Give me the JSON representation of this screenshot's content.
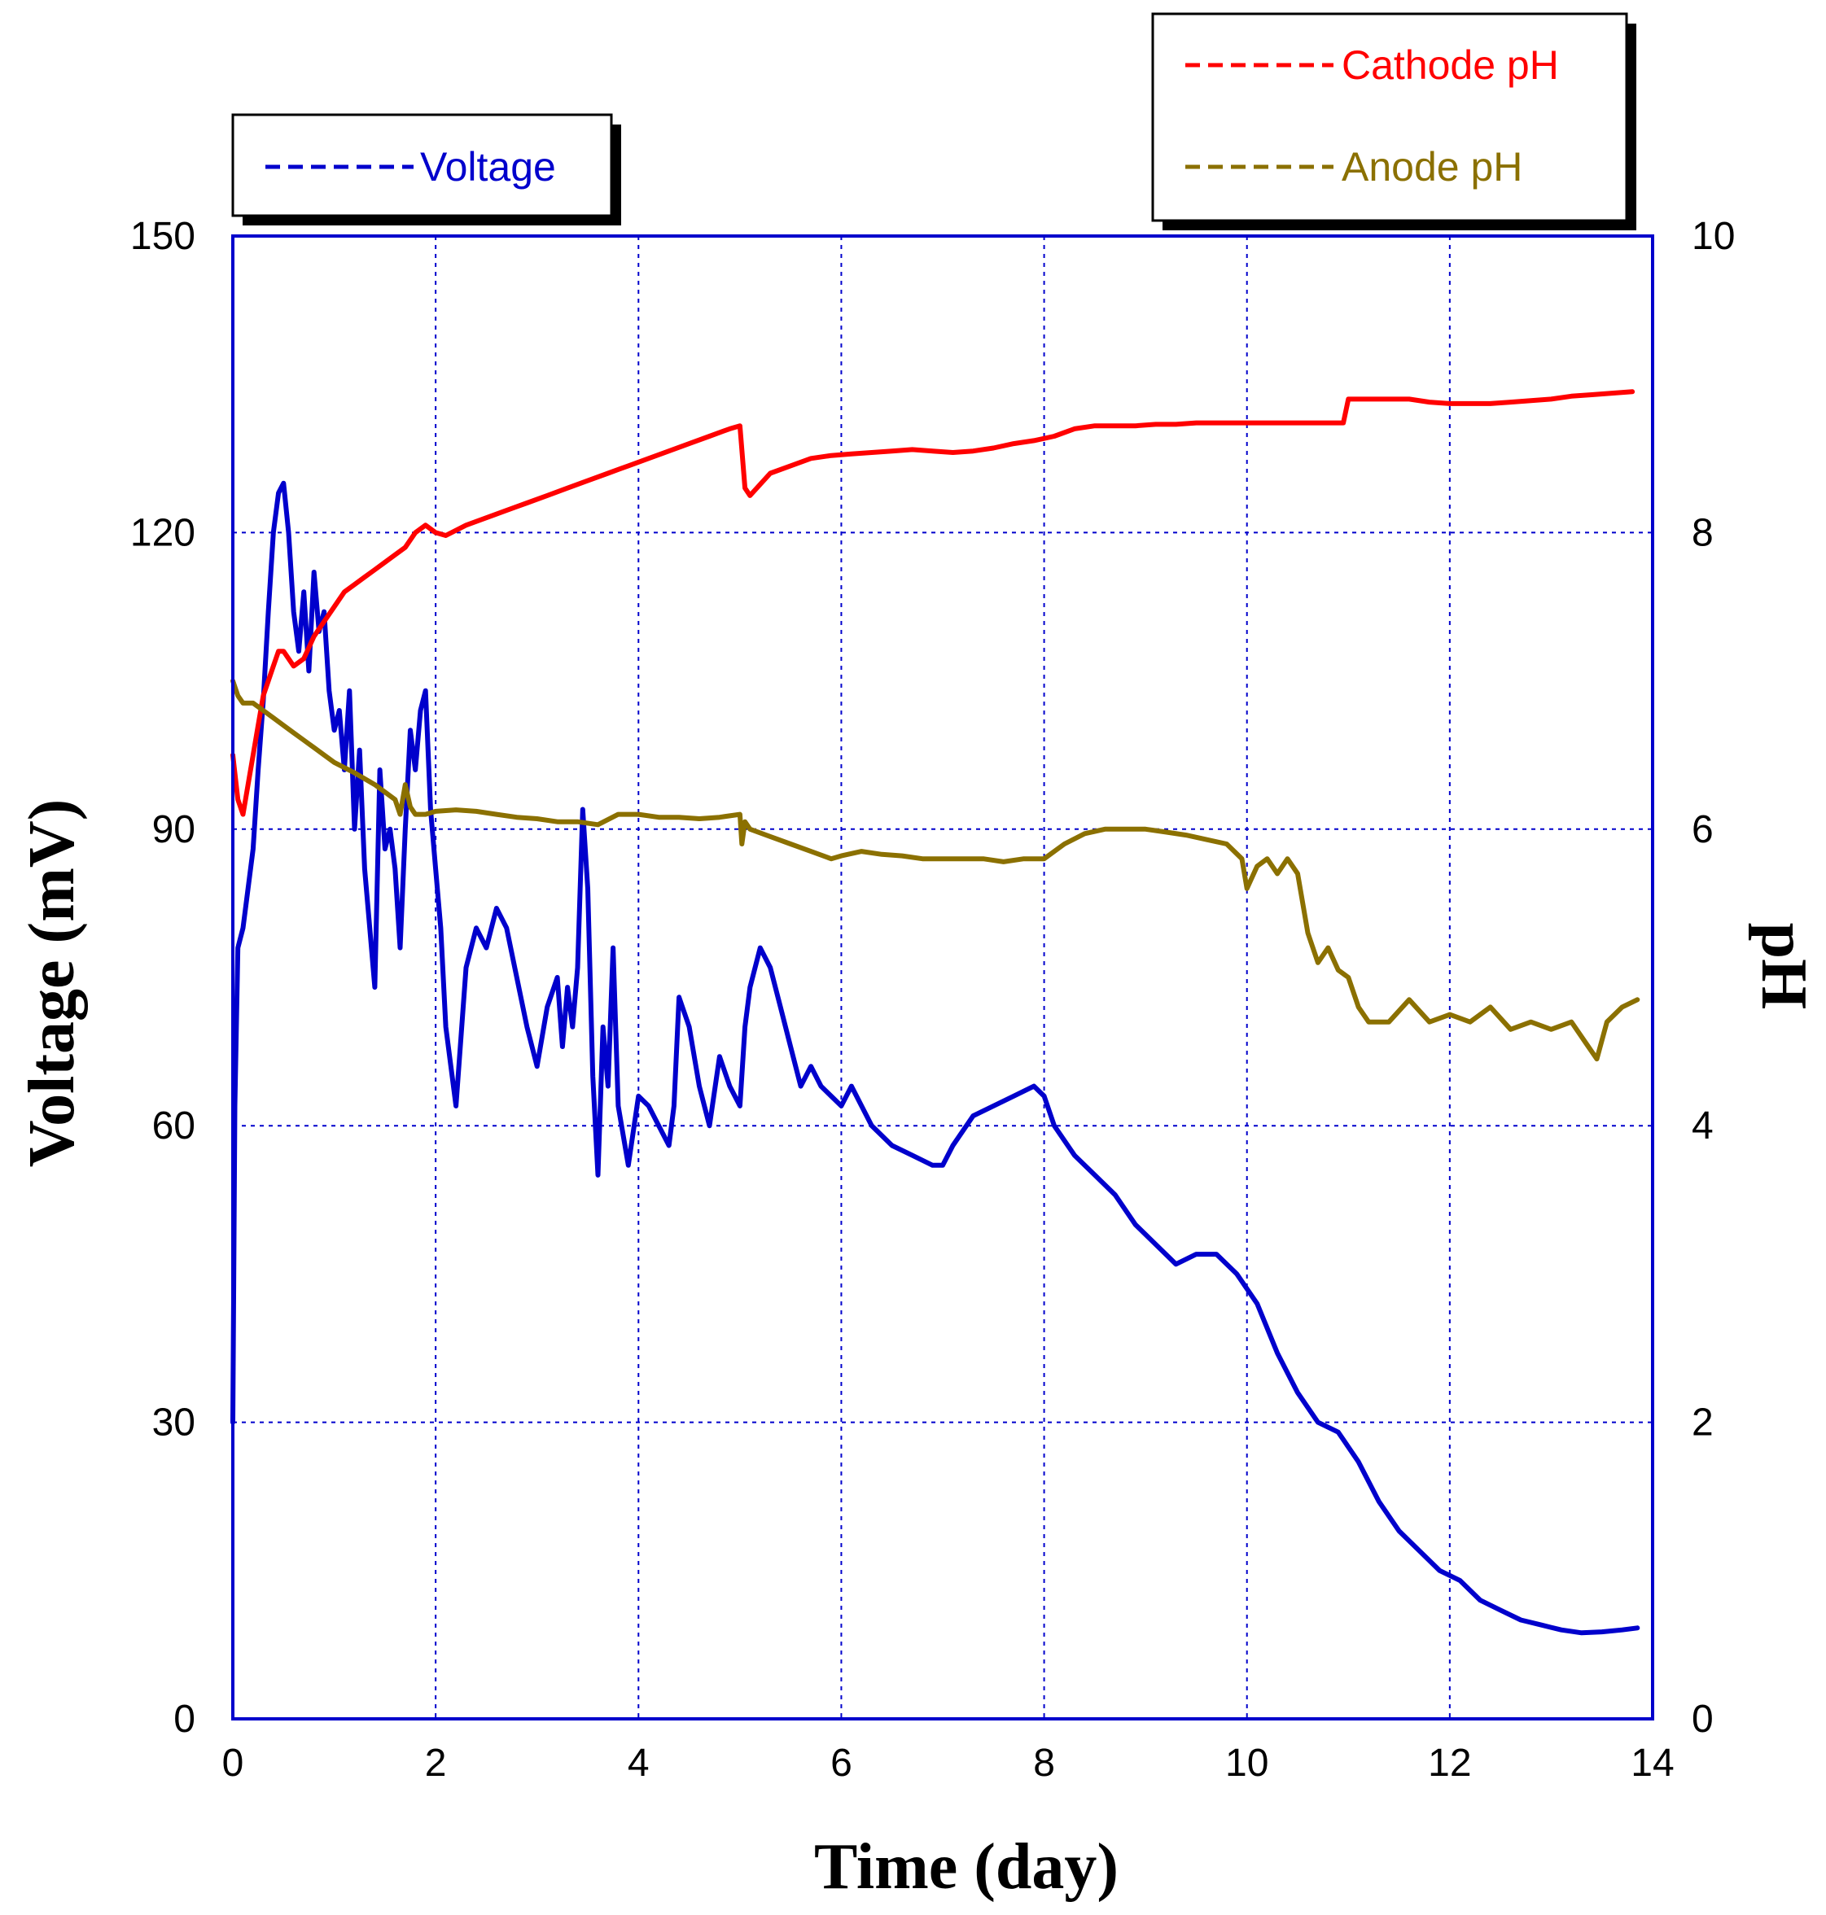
{
  "chart_data": {
    "type": "line",
    "title": "",
    "xlabel": "Time (day)",
    "ylabel_left": "Voltage (mV)",
    "ylabel_right": "pH",
    "xlim": [
      0,
      14
    ],
    "ylim_left": [
      0,
      150
    ],
    "ylim_right": [
      0,
      10
    ],
    "x_ticks": [
      "0",
      "2",
      "4",
      "6",
      "8",
      "10",
      "12",
      "14"
    ],
    "y_left_ticks": [
      "0",
      "30",
      "60",
      "90",
      "120",
      "150"
    ],
    "y_right_ticks": [
      "0",
      "2",
      "4",
      "6",
      "8",
      "10"
    ],
    "grid": true,
    "colors": {
      "voltage": "#0000cc",
      "cathode": "#ff0000",
      "anode": "#8b7000",
      "grid": "#0000cc",
      "frame": "#0000cc"
    },
    "legend_left": {
      "label": "Voltage",
      "placement": "top-left"
    },
    "legend_right": {
      "labels": [
        "Cathode pH",
        "Anode pH"
      ],
      "placement": "top-right"
    },
    "series": [
      {
        "name": "Voltage",
        "axis": "left",
        "unit": "mV",
        "x": [
          0,
          0.02,
          0.05,
          0.1,
          0.15,
          0.2,
          0.25,
          0.3,
          0.35,
          0.4,
          0.45,
          0.5,
          0.55,
          0.6,
          0.65,
          0.7,
          0.75,
          0.8,
          0.85,
          0.9,
          0.95,
          1.0,
          1.05,
          1.1,
          1.15,
          1.2,
          1.25,
          1.3,
          1.35,
          1.4,
          1.45,
          1.5,
          1.55,
          1.6,
          1.65,
          1.7,
          1.75,
          1.8,
          1.85,
          1.9,
          1.95,
          2.0,
          2.05,
          2.1,
          2.2,
          2.3,
          2.4,
          2.5,
          2.6,
          2.7,
          2.8,
          2.9,
          3.0,
          3.1,
          3.2,
          3.25,
          3.3,
          3.35,
          3.4,
          3.45,
          3.5,
          3.55,
          3.6,
          3.65,
          3.7,
          3.75,
          3.8,
          3.9,
          4.0,
          4.1,
          4.2,
          4.3,
          4.35,
          4.4,
          4.5,
          4.6,
          4.7,
          4.8,
          4.9,
          5.0,
          5.05,
          5.1,
          5.2,
          5.3,
          5.4,
          5.5,
          5.6,
          5.7,
          5.8,
          5.9,
          6.0,
          6.1,
          6.2,
          6.3,
          6.5,
          6.7,
          6.9,
          7.0,
          7.1,
          7.3,
          7.5,
          7.7,
          7.9,
          8.0,
          8.1,
          8.3,
          8.5,
          8.7,
          8.9,
          9.1,
          9.3,
          9.5,
          9.7,
          9.9,
          10.1,
          10.3,
          10.5,
          10.7,
          10.9,
          11.1,
          11.3,
          11.5,
          11.7,
          11.9,
          12.1,
          12.3,
          12.5,
          12.7,
          12.9,
          13.1,
          13.3,
          13.5,
          13.7,
          13.85
        ],
        "values": [
          30,
          62,
          78,
          80,
          84,
          88,
          96,
          103,
          112,
          120,
          124,
          125,
          120,
          112,
          108,
          114,
          106,
          116,
          110,
          112,
          104,
          100,
          102,
          96,
          104,
          90,
          98,
          86,
          80,
          74,
          96,
          88,
          90,
          86,
          78,
          90,
          100,
          96,
          102,
          104,
          92,
          86,
          80,
          70,
          62,
          76,
          80,
          78,
          82,
          80,
          75,
          70,
          66,
          72,
          75,
          68,
          74,
          70,
          76,
          92,
          84,
          65,
          55,
          70,
          64,
          78,
          62,
          56,
          63,
          62,
          60,
          58,
          62,
          73,
          70,
          64,
          60,
          67,
          64,
          62,
          70,
          74,
          78,
          76,
          72,
          68,
          64,
          66,
          64,
          63,
          62,
          64,
          62,
          60,
          58,
          57,
          56,
          56,
          58,
          61,
          62,
          63,
          64,
          63,
          60,
          57,
          55,
          53,
          50,
          48,
          46,
          47,
          47,
          45,
          42,
          37,
          33,
          30,
          29,
          26,
          22,
          19,
          17,
          15,
          14,
          12,
          11,
          10,
          9.5,
          9,
          8.7,
          8.8,
          9.0,
          9.2
        ]
      },
      {
        "name": "Cathode pH",
        "axis": "right",
        "unit": "pH",
        "x": [
          0,
          0.05,
          0.1,
          0.15,
          0.2,
          0.25,
          0.3,
          0.35,
          0.4,
          0.45,
          0.5,
          0.55,
          0.6,
          0.7,
          0.8,
          0.9,
          1.0,
          1.1,
          1.2,
          1.3,
          1.4,
          1.5,
          1.6,
          1.7,
          1.8,
          1.9,
          2.0,
          2.1,
          2.3,
          2.5,
          2.7,
          2.9,
          3.1,
          3.3,
          3.5,
          3.7,
          3.9,
          4.1,
          4.3,
          4.5,
          4.7,
          4.9,
          5.0,
          5.05,
          5.1,
          5.3,
          5.5,
          5.7,
          5.9,
          6.1,
          6.3,
          6.5,
          6.7,
          6.9,
          7.1,
          7.3,
          7.5,
          7.7,
          7.9,
          8.1,
          8.3,
          8.5,
          8.7,
          8.9,
          9.1,
          9.3,
          9.5,
          9.7,
          9.9,
          10.1,
          10.3,
          10.5,
          10.7,
          10.9,
          10.95,
          11.0,
          11.2,
          11.4,
          11.6,
          11.8,
          12.0,
          12.2,
          12.4,
          12.6,
          12.8,
          13.0,
          13.2,
          13.4,
          13.6,
          13.8
        ],
        "values": [
          6.5,
          6.2,
          6.1,
          6.3,
          6.5,
          6.7,
          6.9,
          7.0,
          7.1,
          7.2,
          7.2,
          7.15,
          7.1,
          7.15,
          7.3,
          7.4,
          7.5,
          7.6,
          7.65,
          7.7,
          7.75,
          7.8,
          7.85,
          7.9,
          8.0,
          8.05,
          8.0,
          7.98,
          8.05,
          8.1,
          8.15,
          8.2,
          8.25,
          8.3,
          8.35,
          8.4,
          8.45,
          8.5,
          8.55,
          8.6,
          8.65,
          8.7,
          8.72,
          8.3,
          8.25,
          8.4,
          8.45,
          8.5,
          8.52,
          8.53,
          8.54,
          8.55,
          8.56,
          8.55,
          8.54,
          8.55,
          8.57,
          8.6,
          8.62,
          8.65,
          8.7,
          8.72,
          8.72,
          8.72,
          8.73,
          8.73,
          8.74,
          8.74,
          8.74,
          8.74,
          8.74,
          8.74,
          8.74,
          8.74,
          8.74,
          8.9,
          8.9,
          8.9,
          8.9,
          8.88,
          8.87,
          8.87,
          8.87,
          8.88,
          8.89,
          8.9,
          8.92,
          8.93,
          8.94,
          8.95
        ]
      },
      {
        "name": "Anode pH",
        "axis": "right",
        "unit": "pH",
        "x": [
          0,
          0.05,
          0.1,
          0.2,
          0.3,
          0.4,
          0.5,
          0.6,
          0.7,
          0.8,
          0.9,
          1.0,
          1.2,
          1.4,
          1.6,
          1.65,
          1.7,
          1.75,
          1.8,
          1.9,
          2.0,
          2.2,
          2.4,
          2.6,
          2.8,
          3.0,
          3.2,
          3.4,
          3.6,
          3.8,
          4.0,
          4.2,
          4.4,
          4.6,
          4.8,
          5.0,
          5.02,
          5.05,
          5.1,
          5.3,
          5.5,
          5.7,
          5.9,
          6.0,
          6.2,
          6.4,
          6.6,
          6.8,
          7.0,
          7.2,
          7.4,
          7.6,
          7.8,
          8.0,
          8.2,
          8.4,
          8.6,
          8.8,
          9.0,
          9.2,
          9.4,
          9.6,
          9.8,
          9.95,
          10.0,
          10.1,
          10.2,
          10.3,
          10.4,
          10.5,
          10.6,
          10.7,
          10.8,
          10.9,
          11.0,
          11.1,
          11.2,
          11.4,
          11.6,
          11.8,
          12.0,
          12.2,
          12.4,
          12.6,
          12.8,
          13.0,
          13.2,
          13.35,
          13.45,
          13.55,
          13.7,
          13.85
        ],
        "values": [
          7.0,
          6.9,
          6.85,
          6.85,
          6.8,
          6.75,
          6.7,
          6.65,
          6.6,
          6.55,
          6.5,
          6.45,
          6.38,
          6.3,
          6.2,
          6.1,
          6.3,
          6.15,
          6.1,
          6.1,
          6.12,
          6.13,
          6.12,
          6.1,
          6.08,
          6.07,
          6.05,
          6.05,
          6.03,
          6.1,
          6.1,
          6.08,
          6.08,
          6.07,
          6.08,
          6.1,
          5.9,
          6.05,
          6.0,
          5.95,
          5.9,
          5.85,
          5.8,
          5.82,
          5.85,
          5.83,
          5.82,
          5.8,
          5.8,
          5.8,
          5.8,
          5.78,
          5.8,
          5.8,
          5.9,
          5.97,
          6.0,
          6.0,
          6.0,
          5.98,
          5.96,
          5.93,
          5.9,
          5.8,
          5.6,
          5.75,
          5.8,
          5.7,
          5.8,
          5.7,
          5.3,
          5.1,
          5.2,
          5.05,
          5.0,
          4.8,
          4.7,
          4.7,
          4.85,
          4.7,
          4.75,
          4.7,
          4.8,
          4.65,
          4.7,
          4.65,
          4.7,
          4.55,
          4.45,
          4.7,
          4.8,
          4.85
        ]
      }
    ]
  }
}
